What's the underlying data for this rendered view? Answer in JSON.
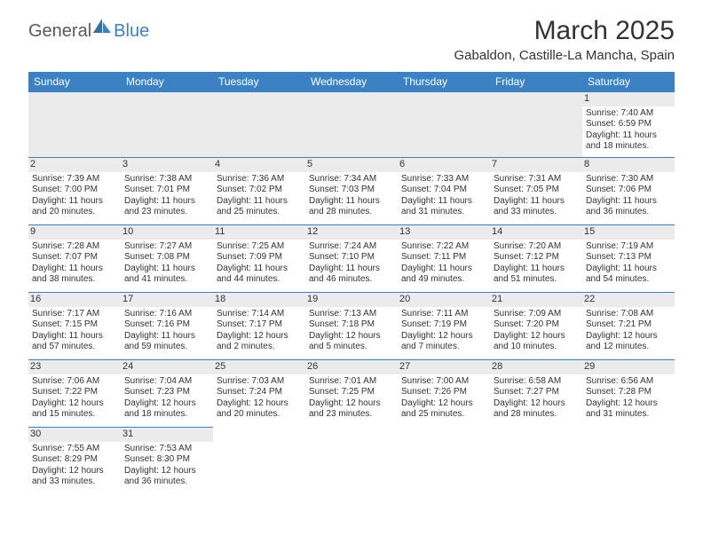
{
  "logo": {
    "text1": "General",
    "text2": "Blue"
  },
  "title": "March 2025",
  "location": "Gabaldon, Castille-La Mancha, Spain",
  "header_bg": "#3b82c4",
  "dayHeaders": [
    "Sunday",
    "Monday",
    "Tuesday",
    "Wednesday",
    "Thursday",
    "Friday",
    "Saturday"
  ],
  "weeks": [
    [
      null,
      null,
      null,
      null,
      null,
      null,
      {
        "n": "1",
        "sr": "7:40 AM",
        "ss": "6:59 PM",
        "dl": "11 hours and 18 minutes."
      }
    ],
    [
      {
        "n": "2",
        "sr": "7:39 AM",
        "ss": "7:00 PM",
        "dl": "11 hours and 20 minutes."
      },
      {
        "n": "3",
        "sr": "7:38 AM",
        "ss": "7:01 PM",
        "dl": "11 hours and 23 minutes."
      },
      {
        "n": "4",
        "sr": "7:36 AM",
        "ss": "7:02 PM",
        "dl": "11 hours and 25 minutes."
      },
      {
        "n": "5",
        "sr": "7:34 AM",
        "ss": "7:03 PM",
        "dl": "11 hours and 28 minutes."
      },
      {
        "n": "6",
        "sr": "7:33 AM",
        "ss": "7:04 PM",
        "dl": "11 hours and 31 minutes."
      },
      {
        "n": "7",
        "sr": "7:31 AM",
        "ss": "7:05 PM",
        "dl": "11 hours and 33 minutes."
      },
      {
        "n": "8",
        "sr": "7:30 AM",
        "ss": "7:06 PM",
        "dl": "11 hours and 36 minutes."
      }
    ],
    [
      {
        "n": "9",
        "sr": "7:28 AM",
        "ss": "7:07 PM",
        "dl": "11 hours and 38 minutes."
      },
      {
        "n": "10",
        "sr": "7:27 AM",
        "ss": "7:08 PM",
        "dl": "11 hours and 41 minutes."
      },
      {
        "n": "11",
        "sr": "7:25 AM",
        "ss": "7:09 PM",
        "dl": "11 hours and 44 minutes."
      },
      {
        "n": "12",
        "sr": "7:24 AM",
        "ss": "7:10 PM",
        "dl": "11 hours and 46 minutes."
      },
      {
        "n": "13",
        "sr": "7:22 AM",
        "ss": "7:11 PM",
        "dl": "11 hours and 49 minutes."
      },
      {
        "n": "14",
        "sr": "7:20 AM",
        "ss": "7:12 PM",
        "dl": "11 hours and 51 minutes."
      },
      {
        "n": "15",
        "sr": "7:19 AM",
        "ss": "7:13 PM",
        "dl": "11 hours and 54 minutes."
      }
    ],
    [
      {
        "n": "16",
        "sr": "7:17 AM",
        "ss": "7:15 PM",
        "dl": "11 hours and 57 minutes."
      },
      {
        "n": "17",
        "sr": "7:16 AM",
        "ss": "7:16 PM",
        "dl": "11 hours and 59 minutes."
      },
      {
        "n": "18",
        "sr": "7:14 AM",
        "ss": "7:17 PM",
        "dl": "12 hours and 2 minutes."
      },
      {
        "n": "19",
        "sr": "7:13 AM",
        "ss": "7:18 PM",
        "dl": "12 hours and 5 minutes."
      },
      {
        "n": "20",
        "sr": "7:11 AM",
        "ss": "7:19 PM",
        "dl": "12 hours and 7 minutes."
      },
      {
        "n": "21",
        "sr": "7:09 AM",
        "ss": "7:20 PM",
        "dl": "12 hours and 10 minutes."
      },
      {
        "n": "22",
        "sr": "7:08 AM",
        "ss": "7:21 PM",
        "dl": "12 hours and 12 minutes."
      }
    ],
    [
      {
        "n": "23",
        "sr": "7:06 AM",
        "ss": "7:22 PM",
        "dl": "12 hours and 15 minutes."
      },
      {
        "n": "24",
        "sr": "7:04 AM",
        "ss": "7:23 PM",
        "dl": "12 hours and 18 minutes."
      },
      {
        "n": "25",
        "sr": "7:03 AM",
        "ss": "7:24 PM",
        "dl": "12 hours and 20 minutes."
      },
      {
        "n": "26",
        "sr": "7:01 AM",
        "ss": "7:25 PM",
        "dl": "12 hours and 23 minutes."
      },
      {
        "n": "27",
        "sr": "7:00 AM",
        "ss": "7:26 PM",
        "dl": "12 hours and 25 minutes."
      },
      {
        "n": "28",
        "sr": "6:58 AM",
        "ss": "7:27 PM",
        "dl": "12 hours and 28 minutes."
      },
      {
        "n": "29",
        "sr": "6:56 AM",
        "ss": "7:28 PM",
        "dl": "12 hours and 31 minutes."
      }
    ],
    [
      {
        "n": "30",
        "sr": "7:55 AM",
        "ss": "8:29 PM",
        "dl": "12 hours and 33 minutes."
      },
      {
        "n": "31",
        "sr": "7:53 AM",
        "ss": "8:30 PM",
        "dl": "12 hours and 36 minutes."
      },
      null,
      null,
      null,
      null,
      null
    ]
  ],
  "labels": {
    "sunrise": "Sunrise: ",
    "sunset": "Sunset: ",
    "daylight": "Daylight: "
  }
}
